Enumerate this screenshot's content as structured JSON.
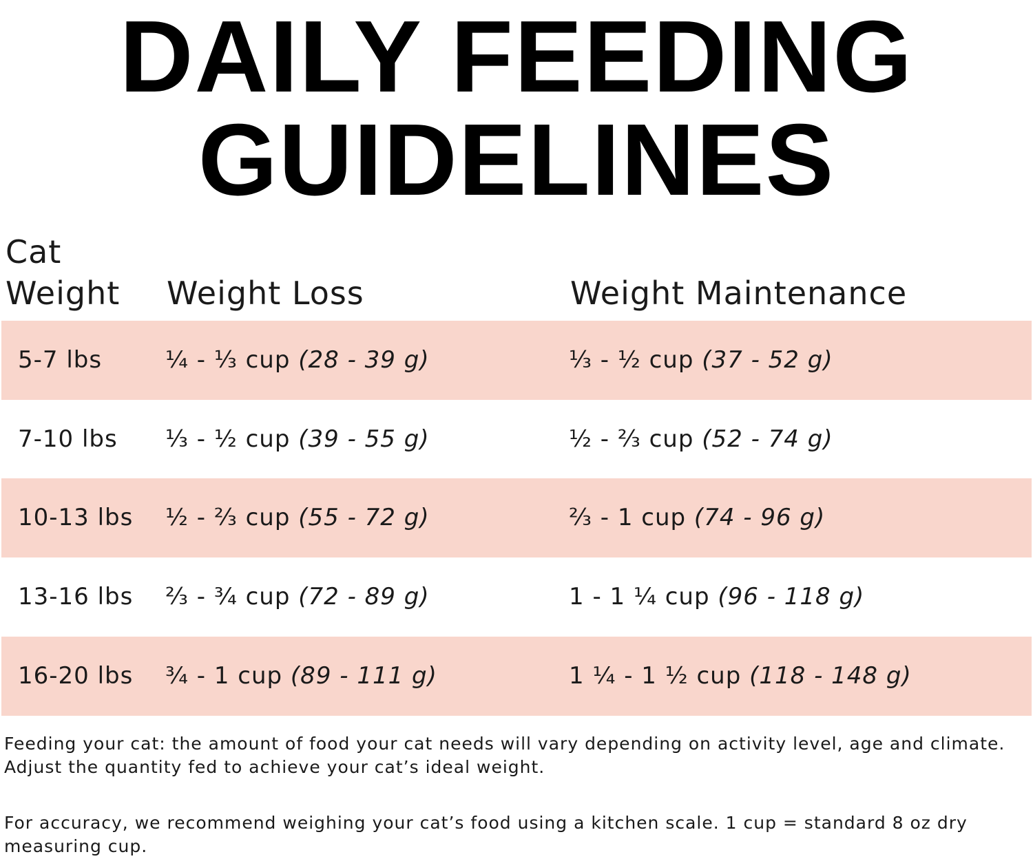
{
  "header": {
    "title_lines": [
      "DAILY FEEDING",
      "GUIDELINES"
    ]
  },
  "table": {
    "columns": [
      "Cat Weight",
      "Weight Loss",
      "Weight Maintenance"
    ],
    "rows": [
      {
        "weight": "5-7 lbs",
        "loss": {
          "cups": "¼ - ⅓ cup",
          "grams": "(28 - 39 g)"
        },
        "maintenance": {
          "cups": "⅓ - ½ cup",
          "grams": "(37 - 52 g)"
        }
      },
      {
        "weight": "7-10 lbs",
        "loss": {
          "cups": "⅓ - ½ cup",
          "grams": "(39 - 55 g)"
        },
        "maintenance": {
          "cups": "½ - ⅔ cup",
          "grams": "(52 - 74 g)"
        }
      },
      {
        "weight": "10-13 lbs",
        "loss": {
          "cups": "½ - ⅔ cup",
          "grams": "(55 - 72 g)"
        },
        "maintenance": {
          "cups": "⅔ - 1 cup",
          "grams": "(74 - 96 g)"
        }
      },
      {
        "weight": "13-16 lbs",
        "loss": {
          "cups": "⅔ - ¾ cup",
          "grams": "(72 - 89 g)"
        },
        "maintenance": {
          "cups": "1 - 1 ¼ cup",
          "grams": "(96 - 118 g)"
        }
      },
      {
        "weight": "16-20 lbs",
        "loss": {
          "cups": "¾ - 1 cup",
          "grams": "(89 - 111 g)"
        },
        "maintenance": {
          "cups": "1 ¼ - 1 ½ cup",
          "grams": "(118 - 148 g)"
        }
      }
    ]
  },
  "notes": [
    "Feeding your cat: the amount of food your cat needs will vary depending on activity level, age and climate. Adjust the quantity fed to achieve your cat’s ideal weight.",
    "For accuracy, we recommend weighing your cat’s food using a kitchen scale. 1 cup = standard 8 oz dry measuring cup."
  ]
}
